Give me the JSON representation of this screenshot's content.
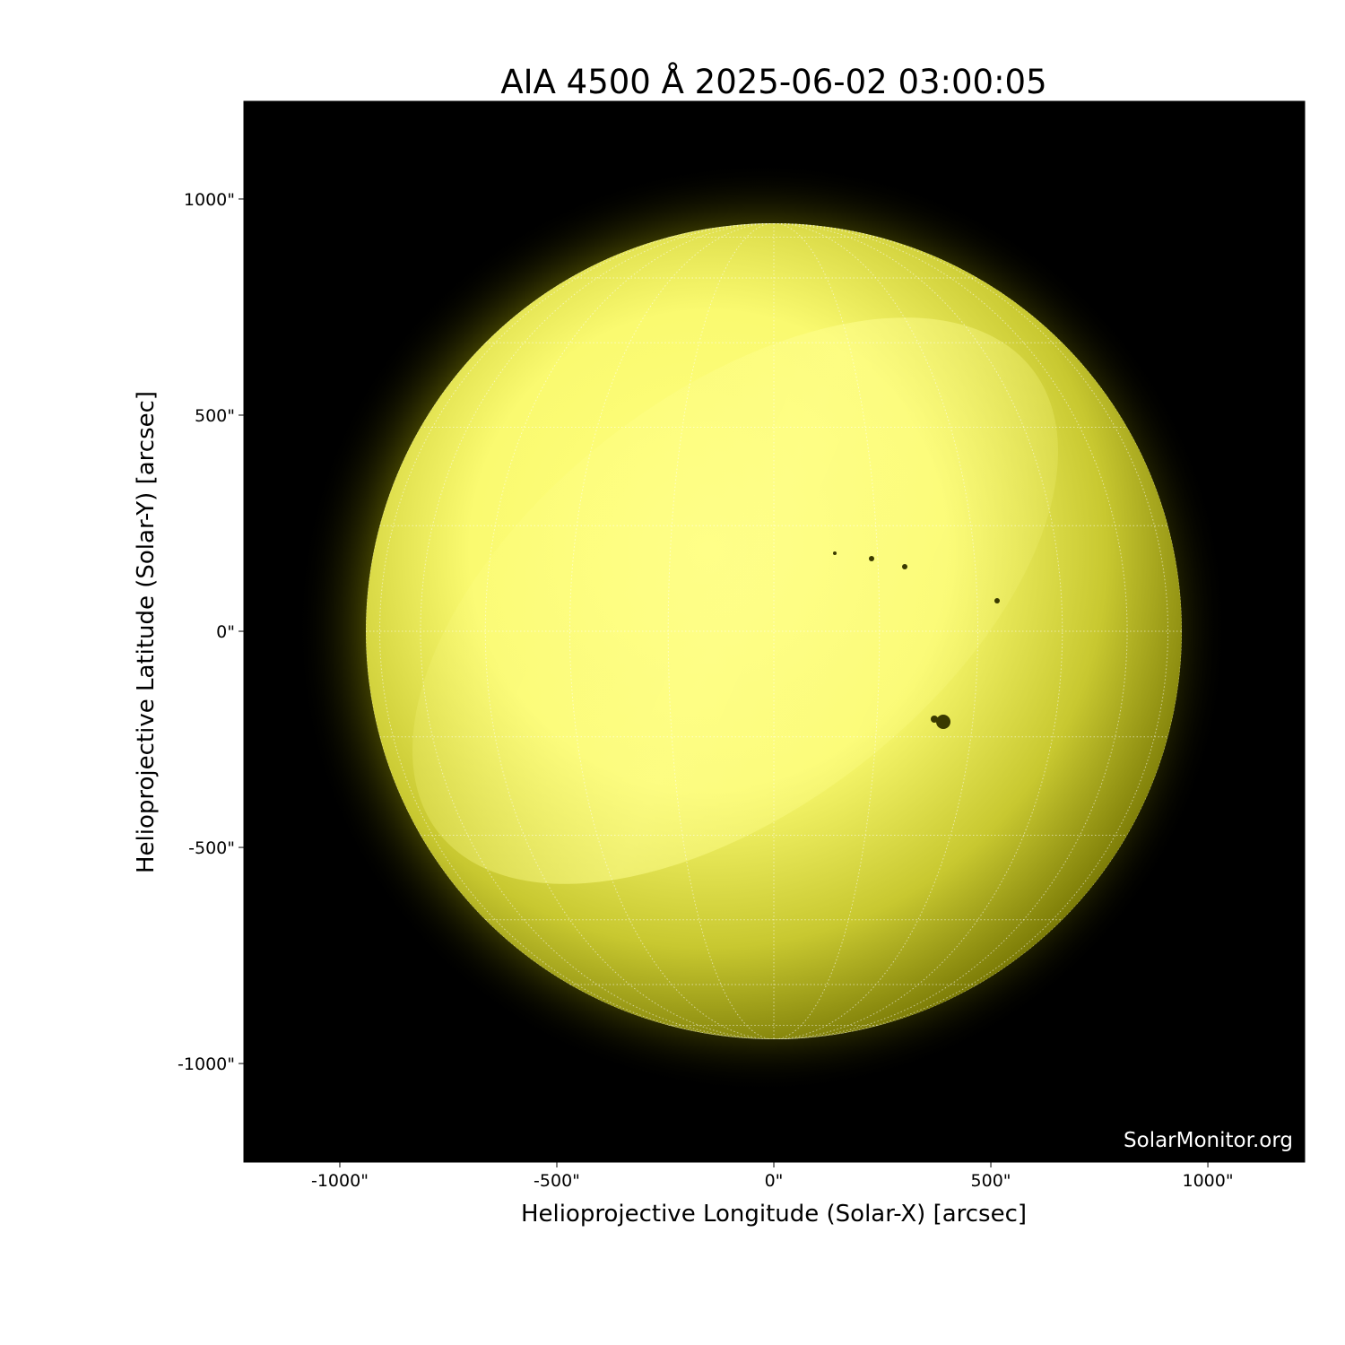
{
  "chart_data": {
    "type": "heatmap",
    "title": "AIA 4500 Å 2025-06-02 03:00:05",
    "xlabel": "Helioprojective Longitude (Solar-X) [arcsec]",
    "ylabel": "Helioprojective Latitude (Solar-Y) [arcsec]",
    "xlim": [
      -1221,
      1223
    ],
    "ylim": [
      -1228,
      1226
    ],
    "xticks": [
      -1000,
      -500,
      0,
      500,
      1000
    ],
    "yticks": [
      -1000,
      -500,
      0,
      500,
      1000
    ],
    "xtick_labels": [
      "-1000\"",
      "-500\"",
      "0\"",
      "500\"",
      "1000\""
    ],
    "ytick_labels": [
      "-1000\"",
      "-500\"",
      "0\"",
      "500\"",
      "1000\""
    ],
    "solar_radius_arcsec": 940,
    "grid": "heliographic lat/lon every 15°, dotted white",
    "colormap": "black to yellow",
    "colors": {
      "background": "#000000",
      "disk_bright": "#ffff80",
      "disk_dim": "#8a8a00"
    }
  },
  "watermark": "SolarMonitor.org"
}
